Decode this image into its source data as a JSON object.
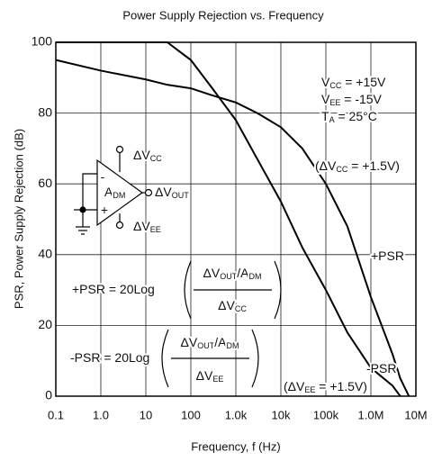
{
  "chart_data": {
    "type": "line",
    "title": "Power Supply Rejection vs. Frequency",
    "xlabel": "Frequency, f (Hz)",
    "ylabel": "PSR, Power Supply Rejection (dB)",
    "xscale": "log",
    "grid": true,
    "x": [
      0.1,
      1,
      10,
      30,
      100,
      300,
      1000,
      3000,
      10000,
      30000,
      100000,
      300000,
      1000000,
      3000000,
      4500000,
      7000000
    ],
    "series": [
      {
        "name": "+PSR",
        "color": "#000000",
        "values": [
          95,
          92,
          89.5,
          88,
          87,
          85,
          83,
          80,
          76,
          70,
          60,
          48,
          28,
          12,
          5,
          0
        ]
      },
      {
        "name": "-PSR",
        "color": "#000000",
        "values": [
          100,
          100,
          100,
          100,
          95,
          87,
          78,
          67,
          55,
          42,
          30,
          18,
          8,
          3,
          0,
          null
        ]
      }
    ],
    "xlim": [
      0.1,
      10000000
    ],
    "xticks": [
      0.1,
      {
        "value": 1,
        "label": "1.0"
      },
      10,
      100,
      {
        "value": 1000,
        "label": "1.0k"
      },
      {
        "value": 10000,
        "label": "10k"
      },
      {
        "value": 100000,
        "label": "100k"
      },
      {
        "value": 1000000,
        "label": "1.0M"
      },
      {
        "value": 10000000,
        "label": "10M"
      }
    ],
    "ylim": [
      0,
      100
    ],
    "yticks": [
      0,
      20,
      40,
      60,
      80,
      100
    ],
    "annotations": [
      {
        "parts": [
          {
            "t": "V"
          },
          {
            "t": "CC",
            "sub": true
          },
          {
            "t": " = +15V"
          }
        ]
      },
      {
        "parts": [
          {
            "t": "V"
          },
          {
            "t": "EE",
            "sub": true
          },
          {
            "t": " = -15V"
          }
        ]
      },
      {
        "parts": [
          {
            "t": "T"
          },
          {
            "t": "A",
            "sub": true
          },
          {
            "t": " = 25°C"
          }
        ]
      },
      {
        "parts": [
          {
            "t": "(ΔV"
          },
          {
            "t": "CC",
            "sub": true
          },
          {
            "t": " = +1.5V)"
          }
        ]
      },
      {
        "parts": [
          {
            "t": "+PSR"
          }
        ]
      },
      {
        "parts": [
          {
            "t": "-PSR"
          }
        ]
      },
      {
        "parts": [
          {
            "t": "(ΔV"
          },
          {
            "t": "EE",
            "sub": true
          },
          {
            "t": " = +1.5V)"
          }
        ]
      },
      {
        "parts": [
          {
            "t": "ΔV"
          },
          {
            "t": "CC",
            "sub": true
          }
        ]
      },
      {
        "parts": [
          {
            "t": "A"
          },
          {
            "t": "DM",
            "sub": true
          }
        ]
      },
      {
        "parts": [
          {
            "t": "ΔV"
          },
          {
            "t": "OUT",
            "sub": true
          }
        ]
      },
      {
        "parts": [
          {
            "t": "ΔV"
          },
          {
            "t": "EE",
            "sub": true
          }
        ]
      },
      {
        "parts": [
          {
            "t": "-"
          }
        ]
      },
      {
        "parts": [
          {
            "t": "+"
          }
        ]
      },
      {
        "parts": [
          {
            "t": "+PSR = 20Log"
          }
        ]
      },
      {
        "parts": [
          {
            "t": "ΔV"
          },
          {
            "t": "OUT",
            "sub": true
          },
          {
            "t": "/A"
          },
          {
            "t": "DM",
            "sub": true
          }
        ]
      },
      {
        "parts": [
          {
            "t": "ΔV"
          },
          {
            "t": "CC",
            "sub": true
          }
        ]
      },
      {
        "parts": [
          {
            "t": "-PSR = 20Log"
          }
        ]
      },
      {
        "parts": [
          {
            "t": "ΔV"
          },
          {
            "t": "OUT",
            "sub": true
          },
          {
            "t": "/A"
          },
          {
            "t": "DM",
            "sub": true
          }
        ]
      },
      {
        "parts": [
          {
            "t": "ΔV"
          },
          {
            "t": "EE",
            "sub": true
          }
        ]
      }
    ]
  }
}
